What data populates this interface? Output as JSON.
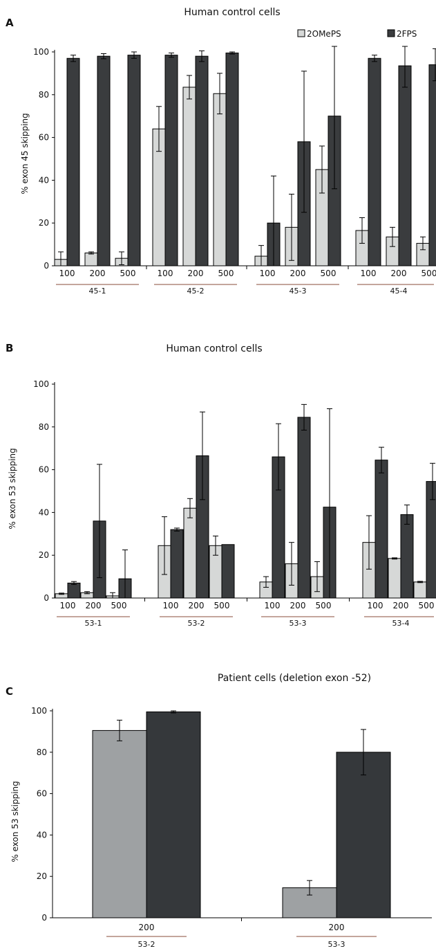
{
  "colors": {
    "2OMePS": "#d6d8d7",
    "2FPS": "#3a3c3e",
    "patient_light": "#9ea1a3",
    "patient_dark": "#35383b",
    "group_underline": "#8a4b3a"
  },
  "chart_data": [
    {
      "type": "bar",
      "panel": "A",
      "title": "Human control cells",
      "ylabel": "% exon 45 skipping",
      "ylim": [
        0,
        100
      ],
      "yticks": [
        0,
        20,
        40,
        60,
        80,
        100
      ],
      "legend": {
        "placement": "top-right",
        "entries": [
          "2OMePS",
          "2FPS"
        ]
      },
      "series_names": [
        "2OMePS",
        "2FPS"
      ],
      "groups": [
        {
          "name": "45-1",
          "doses": [
            "100",
            "200",
            "500"
          ],
          "values": [
            [
              3,
              97
            ],
            [
              6,
              98
            ],
            [
              3.5,
              98.5
            ]
          ],
          "errors": [
            [
              3.5,
              1.5
            ],
            [
              0.5,
              1.2
            ],
            [
              3,
              1.5
            ]
          ]
        },
        {
          "name": "45-2",
          "doses": [
            "100",
            "200",
            "500"
          ],
          "values": [
            [
              64,
              98.5
            ],
            [
              83.5,
              98
            ],
            [
              80.5,
              99.5
            ]
          ],
          "errors": [
            [
              10.5,
              1
            ],
            [
              5.5,
              2.5
            ],
            [
              9.5,
              0.5
            ]
          ]
        },
        {
          "name": "45-3",
          "doses": [
            "100",
            "200",
            "500"
          ],
          "values": [
            [
              4.5,
              20
            ],
            [
              18,
              58
            ],
            [
              45,
              70
            ]
          ],
          "errors": [
            [
              5,
              22
            ],
            [
              15.5,
              33
            ],
            [
              11,
              34
            ]
          ]
        },
        {
          "name": "45-4",
          "doses": [
            "100",
            "200",
            "500"
          ],
          "values": [
            [
              16.5,
              97
            ],
            [
              13.5,
              93.5
            ],
            [
              10.5,
              94
            ]
          ],
          "errors": [
            [
              6,
              1.5
            ],
            [
              4.5,
              10
            ],
            [
              3,
              7.5
            ]
          ]
        }
      ]
    },
    {
      "type": "bar",
      "panel": "B",
      "title": "Human control cells",
      "ylabel": "% exon 53 skipping",
      "ylim": [
        0,
        100
      ],
      "yticks": [
        0,
        20,
        40,
        60,
        80,
        100
      ],
      "series_names": [
        "2OMePS",
        "2FPS"
      ],
      "groups": [
        {
          "name": "53-1",
          "doses": [
            "100",
            "200",
            "500"
          ],
          "values": [
            [
              2,
              7
            ],
            [
              2.5,
              36
            ],
            [
              1,
              9
            ]
          ],
          "errors": [
            [
              0.3,
              0.7
            ],
            [
              0.5,
              26.5
            ],
            [
              1.5,
              13.5
            ]
          ]
        },
        {
          "name": "53-2",
          "doses": [
            "100",
            "200",
            "500"
          ],
          "values": [
            [
              24.5,
              32
            ],
            [
              42,
              66.5
            ],
            [
              24.5,
              25
            ]
          ],
          "errors": [
            [
              13.5,
              0.7
            ],
            [
              4.5,
              20.5
            ],
            [
              4.5,
              0
            ]
          ]
        },
        {
          "name": "53-3",
          "doses": [
            "100",
            "200",
            "500"
          ],
          "values": [
            [
              7.5,
              66
            ],
            [
              16,
              84.5
            ],
            [
              10,
              42.5
            ]
          ],
          "errors": [
            [
              2.5,
              15.5
            ],
            [
              10,
              6
            ],
            [
              7,
              46
            ]
          ]
        },
        {
          "name": "53-4",
          "doses": [
            "100",
            "200",
            "500"
          ],
          "values": [
            [
              26,
              64.5
            ],
            [
              18.5,
              39
            ],
            [
              7.5,
              54.5
            ]
          ],
          "errors": [
            [
              12.5,
              6
            ],
            [
              0.3,
              4.5
            ],
            [
              0.3,
              8.5
            ]
          ]
        }
      ]
    },
    {
      "type": "bar",
      "panel": "C",
      "title": "Patient cells (deletion exon -52)",
      "ylabel": "% exon 53 skipping",
      "ylim": [
        0,
        100
      ],
      "yticks": [
        0,
        20,
        40,
        60,
        80,
        100
      ],
      "series_names": [
        "2OMePS",
        "2FPS"
      ],
      "groups": [
        {
          "name": "53-2",
          "doses": [
            "200"
          ],
          "values": [
            [
              90.5,
              99.5
            ]
          ],
          "errors": [
            [
              5,
              0.5
            ]
          ]
        },
        {
          "name": "53-3",
          "doses": [
            "200"
          ],
          "values": [
            [
              14.5,
              80
            ]
          ],
          "errors": [
            [
              3.5,
              11
            ]
          ]
        }
      ]
    }
  ]
}
